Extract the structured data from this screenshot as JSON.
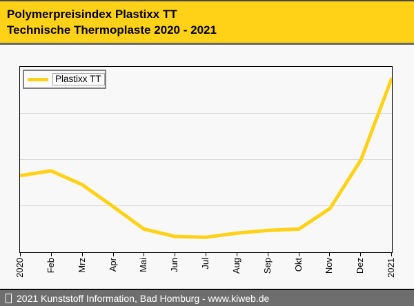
{
  "header": {
    "title_line1": "Polymerpreisindex Plastixx TT",
    "title_line2": "Technische Thermoplaste 2020 - 2021"
  },
  "legend": {
    "label": "Plastixx TT",
    "swatch_icon": "yellow-line-swatch"
  },
  "chart_data": {
    "type": "line",
    "title": "Polymerpreisindex Plastixx TT — Technische Thermoplaste 2020 - 2021",
    "categories": [
      "2020",
      "Feb",
      "Mrz",
      "Apr",
      "Mai",
      "Jun",
      "Jul",
      "Aug",
      "Sep",
      "Okt",
      "Nov",
      "Dez",
      "2021"
    ],
    "series": [
      {
        "name": "Plastixx TT",
        "values_relative_pct": [
          41.3,
          43.9,
          36.5,
          24.7,
          12.5,
          8.5,
          8.1,
          10.3,
          11.8,
          12.5,
          23.6,
          49.8,
          94.1
        ]
      }
    ],
    "xlabel": "",
    "ylabel": "",
    "y_axis_labels_visible": false,
    "ylim_relative": [
      0,
      100
    ],
    "grid": "horizontal",
    "gridline_positions_pct": [
      25,
      50,
      75
    ],
    "legend_position": "top-left",
    "x_label_rotation_deg": -90,
    "line_color": "#ffd117"
  },
  "footer": {
    "symbol_icon": "missing-glyph-box",
    "text": "2021 Kunststoff Information, Bad Homburg - www.kiweb.de"
  },
  "colors": {
    "accent_yellow": "#ffd117",
    "banner_separator": "#6b6b6b",
    "footer_background": "#6e6e6e",
    "page_background": "#f8f8f8",
    "gridline": "#d9d9d9",
    "plot_border": "#000000"
  }
}
